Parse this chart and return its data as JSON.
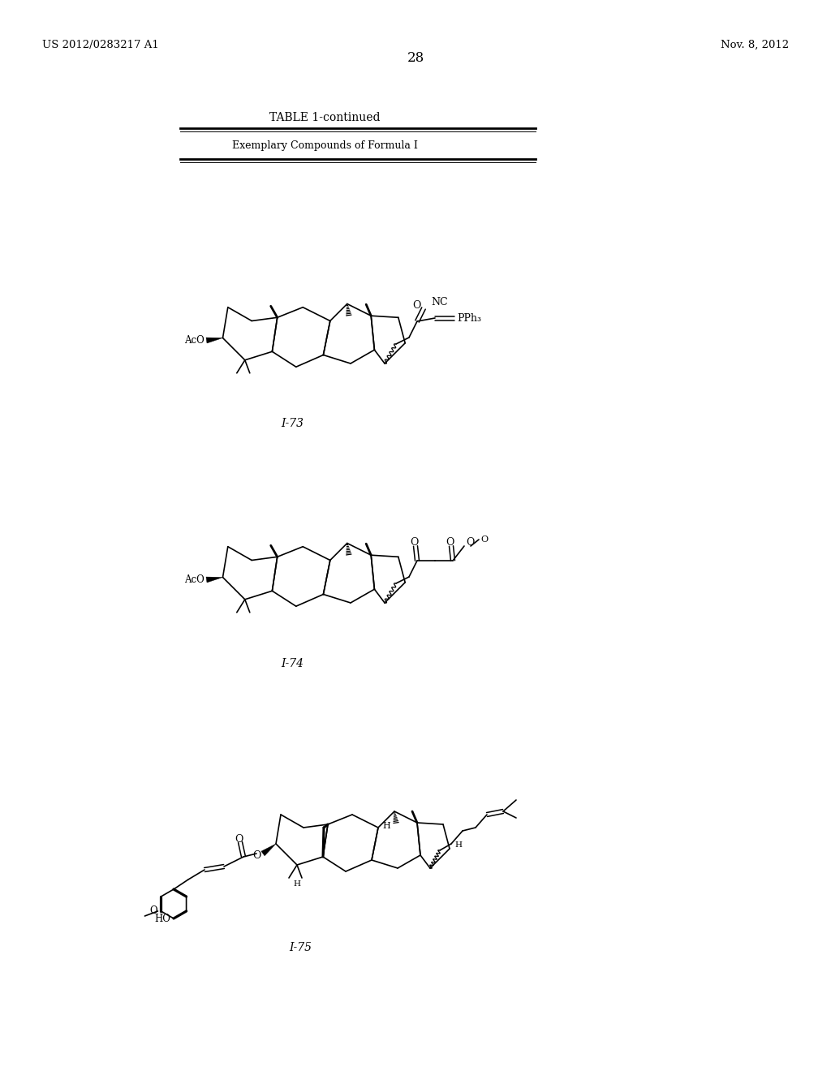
{
  "background_color": "#ffffff",
  "page_number": "28",
  "patent_number": "US 2012/0283217 A1",
  "date": "Nov. 8, 2012",
  "table_title": "TABLE 1-continued",
  "table_subtitle": "Exemplary Compounds of Formula I",
  "compound_labels": [
    "I-73",
    "I-74",
    "I-75"
  ],
  "figsize": [
    10.24,
    13.2
  ],
  "dpi": 100
}
